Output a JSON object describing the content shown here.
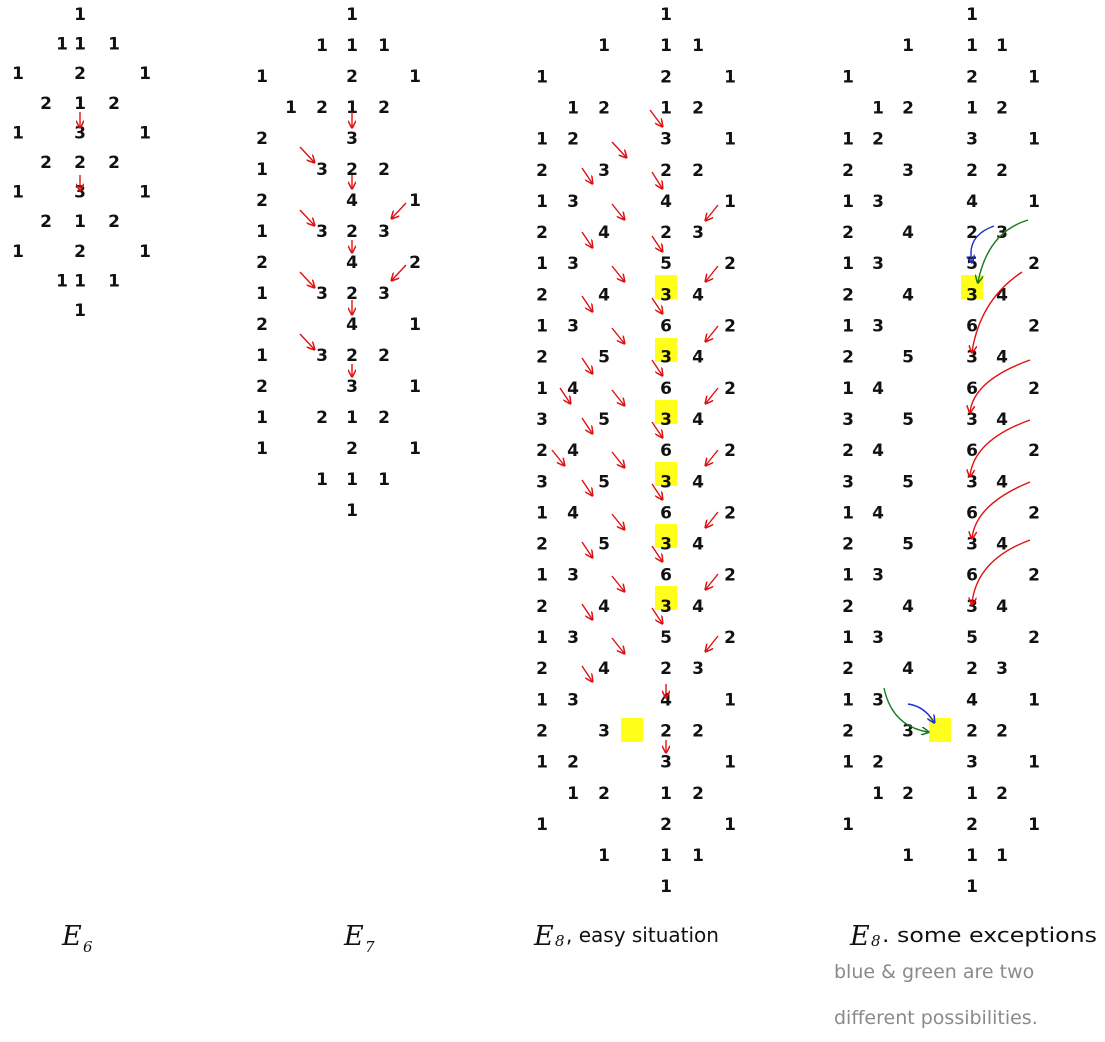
{
  "colors": {
    "ink": "#111111",
    "arrow_red": "#e01010",
    "arrow_blue": "#1a2fd0",
    "arrow_green": "#1a7a1a",
    "highlight": "#ffff1a",
    "note_gray": "#8a8a8a"
  },
  "captions": [
    {
      "letter": "E",
      "sub": "6",
      "tail": ""
    },
    {
      "letter": "E",
      "sub": "7",
      "tail": ""
    },
    {
      "letter": "E",
      "sub": "8",
      "tail": ", easy situation"
    },
    {
      "letter": "E",
      "sub": "8",
      "tail": ". some exceptions"
    }
  ],
  "note_lines": [
    "blue & green are two",
    "different possibilities."
  ],
  "diagrams": [
    {
      "name": "e6",
      "rows": [
        [
          null,
          null,
          null,
          "1",
          null,
          null,
          null
        ],
        [
          null,
          null,
          "1",
          "1",
          "1",
          null,
          null
        ],
        [
          "1",
          null,
          null,
          "2",
          null,
          "1",
          null
        ],
        [
          null,
          "2",
          null,
          "1",
          "2",
          null,
          null
        ],
        [
          "1",
          null,
          null,
          "3",
          null,
          "1",
          null
        ],
        [
          null,
          "2",
          null,
          "2",
          "2",
          null,
          null
        ],
        [
          "1",
          null,
          null,
          "3",
          null,
          "1",
          null
        ],
        [
          null,
          "2",
          null,
          "1",
          "2",
          null,
          null
        ],
        [
          "1",
          null,
          null,
          "2",
          null,
          "1",
          null
        ],
        [
          null,
          null,
          "1",
          "1",
          "1",
          null,
          null
        ],
        [
          null,
          null,
          null,
          "1",
          null,
          null,
          null
        ]
      ]
    },
    {
      "name": "e7",
      "rows": [
        [
          null,
          null,
          null,
          "1",
          null,
          null,
          null
        ],
        [
          null,
          null,
          "1",
          "1",
          "1",
          null,
          null
        ],
        [
          "1",
          null,
          null,
          "2",
          null,
          "1",
          null
        ],
        [
          null,
          "1",
          "2",
          "1",
          "2",
          null,
          null
        ],
        [
          "2",
          null,
          null,
          "3",
          null,
          null,
          null
        ],
        [
          "1",
          null,
          "3",
          "2",
          "2",
          null,
          null
        ],
        [
          "2",
          null,
          null,
          "4",
          null,
          "1",
          null
        ],
        [
          "1",
          null,
          "3",
          "2",
          "3",
          null,
          null
        ],
        [
          "2",
          null,
          null,
          "4",
          null,
          "2",
          null
        ],
        [
          "1",
          null,
          "3",
          "2",
          "3",
          null,
          null
        ],
        [
          "2",
          null,
          null,
          "4",
          null,
          "1",
          null
        ],
        [
          "1",
          null,
          "3",
          "2",
          "2",
          null,
          null
        ],
        [
          "2",
          null,
          null,
          "3",
          null,
          "1",
          null
        ],
        [
          "1",
          null,
          "2",
          "1",
          "2",
          null,
          null
        ],
        [
          "1",
          null,
          null,
          "2",
          null,
          "1",
          null
        ],
        [
          null,
          null,
          "1",
          "1",
          "1",
          null,
          null
        ],
        [
          null,
          null,
          null,
          "1",
          null,
          null,
          null
        ]
      ]
    },
    {
      "name": "e8-easy",
      "rows": [
        [
          null,
          null,
          null,
          "1",
          null,
          null,
          null
        ],
        [
          null,
          null,
          "1",
          "1",
          "1",
          null,
          null
        ],
        [
          "1",
          null,
          null,
          "2",
          null,
          "1",
          null
        ],
        [
          null,
          "1",
          "2",
          "1",
          "2",
          null,
          null
        ],
        [
          "1",
          "2",
          null,
          "3",
          null,
          "1",
          null
        ],
        [
          "2",
          null,
          "3",
          "2",
          "2",
          null,
          null
        ],
        [
          "1",
          "3",
          null,
          "4",
          null,
          "1",
          null
        ],
        [
          "2",
          null,
          "4",
          "2",
          "3",
          null,
          null
        ],
        [
          "1",
          "3",
          null,
          "5",
          null,
          "2",
          null
        ],
        [
          "2",
          null,
          "4",
          "3",
          "4",
          null,
          null
        ],
        [
          "1",
          "3",
          null,
          "6",
          null,
          "2",
          null
        ],
        [
          "2",
          null,
          "5",
          "3",
          "4",
          null,
          null
        ],
        [
          "1",
          "4",
          null,
          "6",
          null,
          "2",
          null
        ],
        [
          "3",
          null,
          "5",
          "3",
          "4",
          null,
          null
        ],
        [
          "2",
          "4",
          null,
          "6",
          null,
          "2",
          null
        ],
        [
          "3",
          null,
          "5",
          "3",
          "4",
          null,
          null
        ],
        [
          "1",
          "4",
          null,
          "6",
          null,
          "2",
          null
        ],
        [
          "2",
          null,
          "5",
          "3",
          "4",
          null,
          null
        ],
        [
          "1",
          "3",
          null,
          "6",
          null,
          "2",
          null
        ],
        [
          "2",
          null,
          "4",
          "3",
          "4",
          null,
          null
        ],
        [
          "1",
          "3",
          null,
          "5",
          null,
          "2",
          null
        ],
        [
          "2",
          null,
          "4",
          "2",
          "3",
          null,
          null
        ],
        [
          "1",
          "3",
          null,
          "4",
          null,
          "1",
          null
        ],
        [
          "2",
          null,
          "3",
          "2",
          "2",
          null,
          null
        ],
        [
          "1",
          "2",
          null,
          "3",
          null,
          "1",
          null
        ],
        [
          null,
          "1",
          "2",
          "1",
          "2",
          null,
          null
        ],
        [
          "1",
          null,
          null,
          "2",
          null,
          "1",
          null
        ],
        [
          null,
          null,
          "1",
          "1",
          "1",
          null,
          null
        ],
        [
          null,
          null,
          null,
          "1",
          null,
          null,
          null
        ]
      ]
    },
    {
      "name": "e8-exceptions",
      "rows": [
        [
          null,
          null,
          null,
          "1",
          null,
          null,
          null
        ],
        [
          null,
          null,
          "1",
          "1",
          "1",
          null,
          null
        ],
        [
          "1",
          null,
          null,
          "2",
          null,
          "1",
          null
        ],
        [
          null,
          "1",
          "2",
          "1",
          "2",
          null,
          null
        ],
        [
          "1",
          "2",
          null,
          "3",
          null,
          "1",
          null
        ],
        [
          "2",
          null,
          "3",
          "2",
          "2",
          null,
          null
        ],
        [
          "1",
          "3",
          null,
          "4",
          null,
          "1",
          null
        ],
        [
          "2",
          null,
          "4",
          "2",
          "3",
          null,
          null
        ],
        [
          "1",
          "3",
          null,
          "5",
          null,
          "2",
          null
        ],
        [
          "2",
          null,
          "4",
          "3",
          "4",
          null,
          null
        ],
        [
          "1",
          "3",
          null,
          "6",
          null,
          "2",
          null
        ],
        [
          "2",
          null,
          "5",
          "3",
          "4",
          null,
          null
        ],
        [
          "1",
          "4",
          null,
          "6",
          null,
          "2",
          null
        ],
        [
          "3",
          null,
          "5",
          "3",
          "4",
          null,
          null
        ],
        [
          "2",
          "4",
          null,
          "6",
          null,
          "2",
          null
        ],
        [
          "3",
          null,
          "5",
          "3",
          "4",
          null,
          null
        ],
        [
          "1",
          "4",
          null,
          "6",
          null,
          "2",
          null
        ],
        [
          "2",
          null,
          "5",
          "3",
          "4",
          null,
          null
        ],
        [
          "1",
          "3",
          null,
          "6",
          null,
          "2",
          null
        ],
        [
          "2",
          null,
          "4",
          "3",
          "4",
          null,
          null
        ],
        [
          "1",
          "3",
          null,
          "5",
          null,
          "2",
          null
        ],
        [
          "2",
          null,
          "4",
          "2",
          "3",
          null,
          null
        ],
        [
          "1",
          "3",
          null,
          "4",
          null,
          "1",
          null
        ],
        [
          "2",
          null,
          "3",
          "2",
          "2",
          null,
          null
        ],
        [
          "1",
          "2",
          null,
          "3",
          null,
          "1",
          null
        ],
        [
          null,
          "1",
          "2",
          "1",
          "2",
          null,
          null
        ],
        [
          "1",
          null,
          null,
          "2",
          null,
          "1",
          null
        ],
        [
          null,
          null,
          "1",
          "1",
          "1",
          null,
          null
        ],
        [
          null,
          null,
          null,
          "1",
          null,
          null,
          null
        ]
      ]
    }
  ]
}
